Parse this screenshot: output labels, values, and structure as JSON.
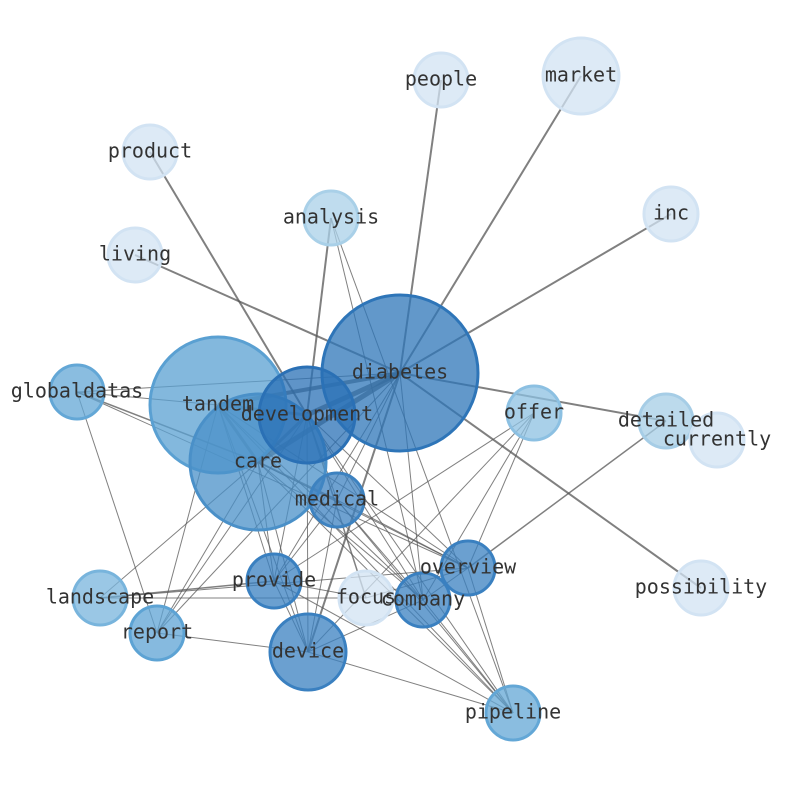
{
  "nodes": [
    {
      "id": "diabetes",
      "label": "diabetes",
      "color": "#2e75b8",
      "size": "xl"
    },
    {
      "id": "tandem",
      "label": "tandem",
      "color": "#5aa0d2",
      "size": "l"
    },
    {
      "id": "care",
      "label": "care",
      "color": "#4a90c8",
      "size": "l"
    },
    {
      "id": "development",
      "label": "development",
      "color": "#2a70b5",
      "size": "m"
    },
    {
      "id": "medical",
      "label": "medical",
      "color": "#3d82c0",
      "size": "s"
    },
    {
      "id": "offer",
      "label": "offer",
      "color": "#8cc0e2",
      "size": "s"
    },
    {
      "id": "detailed",
      "label": "detailed",
      "color": "#a6cde6",
      "size": "s"
    },
    {
      "id": "currently",
      "label": "currently",
      "color": "#d2e3f3",
      "size": "s"
    },
    {
      "id": "possibility",
      "label": "possibility",
      "color": "#d2e3f3",
      "size": "s"
    },
    {
      "id": "inc",
      "label": "inc",
      "color": "#d2e3f3",
      "size": "s"
    },
    {
      "id": "market",
      "label": "market",
      "color": "#d2e3f3",
      "size": "sm"
    },
    {
      "id": "people",
      "label": "people",
      "color": "#d2e3f3",
      "size": "s"
    },
    {
      "id": "product",
      "label": "product",
      "color": "#d2e3f3",
      "size": "s"
    },
    {
      "id": "analysis",
      "label": "analysis",
      "color": "#a9d0e8",
      "size": "s"
    },
    {
      "id": "living",
      "label": "living",
      "color": "#d2e3f3",
      "size": "s"
    },
    {
      "id": "globaldatas",
      "label": "globaldatas",
      "color": "#63a7d6",
      "size": "s"
    },
    {
      "id": "landscape",
      "label": "landscape",
      "color": "#78b4dc",
      "size": "s"
    },
    {
      "id": "report",
      "label": "report",
      "color": "#5da3d4",
      "size": "s"
    },
    {
      "id": "provide",
      "label": "provide",
      "color": "#3a80c0",
      "size": "s"
    },
    {
      "id": "focus",
      "label": "focus",
      "color": "#d2e3f3",
      "size": "s"
    },
    {
      "id": "company",
      "label": "company",
      "color": "#3a80c0",
      "size": "s"
    },
    {
      "id": "overview",
      "label": "overview",
      "color": "#3a80c0",
      "size": "s"
    },
    {
      "id": "device",
      "label": "device",
      "color": "#3a80c0",
      "size": "sm"
    },
    {
      "id": "pipeline",
      "label": "pipeline",
      "color": "#63a7d6",
      "size": "s"
    }
  ],
  "edges": [
    [
      "diabetes",
      "people",
      2
    ],
    [
      "diabetes",
      "market",
      2
    ],
    [
      "diabetes",
      "inc",
      2
    ],
    [
      "diabetes",
      "living",
      2
    ],
    [
      "diabetes",
      "detailed",
      2
    ],
    [
      "diabetes",
      "possibility",
      2
    ],
    [
      "diabetes",
      "globaldatas",
      1
    ],
    [
      "diabetes",
      "development",
      5
    ],
    [
      "diabetes",
      "tandem",
      4
    ],
    [
      "diabetes",
      "care",
      5
    ],
    [
      "diabetes",
      "device",
      2
    ],
    [
      "diabetes",
      "medical",
      1
    ],
    [
      "diabetes",
      "provide",
      1
    ],
    [
      "diabetes",
      "company",
      1
    ],
    [
      "diabetes",
      "report",
      1
    ],
    [
      "product",
      "development",
      2
    ],
    [
      "analysis",
      "development",
      2
    ],
    [
      "analysis",
      "company",
      1
    ],
    [
      "analysis",
      "pipeline",
      1
    ],
    [
      "overview",
      "detailed",
      1.5
    ],
    [
      "offer",
      "provide",
      1
    ],
    [
      "offer",
      "device",
      1
    ],
    [
      "offer",
      "overview",
      1
    ],
    [
      "offer",
      "company",
      1
    ],
    [
      "globaldatas",
      "tandem",
      1
    ],
    [
      "globaldatas",
      "care",
      1.5
    ],
    [
      "globaldatas",
      "report",
      1
    ],
    [
      "globaldatas",
      "overview",
      1
    ],
    [
      "tandem",
      "development",
      3
    ],
    [
      "tandem",
      "care",
      3
    ],
    [
      "tandem",
      "provide",
      1
    ],
    [
      "tandem",
      "device",
      1
    ],
    [
      "tandem",
      "company",
      1
    ],
    [
      "tandem",
      "pipeline",
      1
    ],
    [
      "tandem",
      "report",
      1
    ],
    [
      "tandem",
      "overview",
      1
    ],
    [
      "care",
      "development",
      3
    ],
    [
      "care",
      "medical",
      2
    ],
    [
      "care",
      "provide",
      1
    ],
    [
      "care",
      "device",
      1
    ],
    [
      "care",
      "company",
      1
    ],
    [
      "care",
      "pipeline",
      1
    ],
    [
      "care",
      "landscape",
      1
    ],
    [
      "care",
      "report",
      1
    ],
    [
      "care",
      "overview",
      1
    ],
    [
      "development",
      "medical",
      1
    ],
    [
      "development",
      "device",
      1
    ],
    [
      "development",
      "provide",
      1
    ],
    [
      "development",
      "focus",
      1.5
    ],
    [
      "development",
      "company",
      1
    ],
    [
      "development",
      "overview",
      1
    ],
    [
      "development",
      "pipeline",
      1
    ],
    [
      "development",
      "report",
      1
    ],
    [
      "medical",
      "device",
      1
    ],
    [
      "medical",
      "provide",
      1
    ],
    [
      "medical",
      "company",
      1
    ],
    [
      "medical",
      "overview",
      1
    ],
    [
      "medical",
      "pipeline",
      1
    ],
    [
      "landscape",
      "provide",
      1.5
    ],
    [
      "landscape",
      "focus",
      1
    ],
    [
      "landscape",
      "overview",
      1
    ],
    [
      "report",
      "device",
      1
    ],
    [
      "provide",
      "pipeline",
      1
    ],
    [
      "provide",
      "focus",
      1
    ],
    [
      "provide",
      "device",
      1
    ],
    [
      "device",
      "pipeline",
      1
    ],
    [
      "device",
      "company",
      1
    ],
    [
      "company",
      "overview",
      1
    ],
    [
      "overview",
      "pipeline",
      1
    ],
    [
      "company",
      "pipeline",
      1
    ],
    [
      "focus",
      "overview",
      1
    ]
  ]
}
